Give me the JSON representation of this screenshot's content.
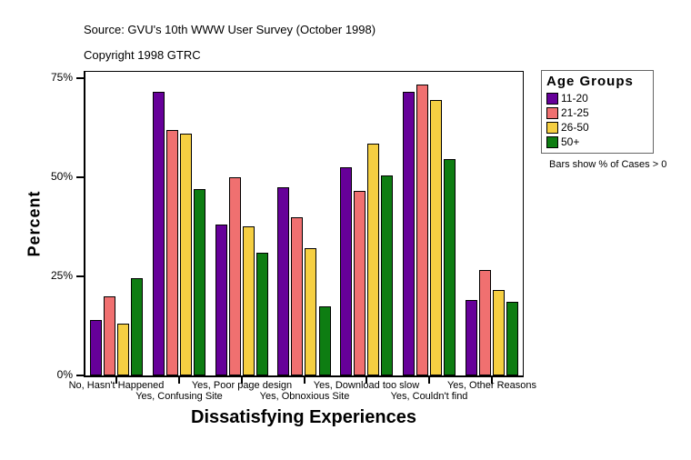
{
  "header": {
    "source_line": "Source: GVU's 10th WWW User Survey (October 1998)",
    "copyright_line": "Copyright 1998 GTRC"
  },
  "chart_data": {
    "type": "bar",
    "title": "",
    "xlabel": "Dissatisfying Experiences",
    "ylabel": "Percent",
    "ylim": [
      0,
      76.6
    ],
    "grid": false,
    "yticks": [
      {
        "label": "0%",
        "value": 0
      },
      {
        "label": "25%",
        "value": 25
      },
      {
        "label": "50%",
        "value": 50
      },
      {
        "label": "75%",
        "value": 75
      }
    ],
    "categories": [
      "No, Hasn't Happened",
      "Yes, Confusing Site",
      "Yes, Poor page design",
      "Yes, Obnoxious Site",
      "Yes, Download too slow",
      "Yes, Couldn't find",
      "Yes, Other Reasons"
    ],
    "series": [
      {
        "name": "11-20",
        "color": "#660099",
        "values": [
          14,
          71.5,
          38,
          47.5,
          52.5,
          71.5,
          19
        ]
      },
      {
        "name": "21-25",
        "color": "#F07070",
        "values": [
          20,
          62,
          50,
          40,
          46.5,
          73.5,
          26.5
        ]
      },
      {
        "name": "26-50",
        "color": "#F5CF42",
        "values": [
          13,
          61,
          37.5,
          32,
          58.5,
          69.5,
          21.5
        ]
      },
      {
        "name": "50+",
        "color": "#0E7D12",
        "values": [
          24.5,
          47,
          31,
          17.5,
          50.5,
          54.5,
          18.5
        ]
      }
    ],
    "legend": {
      "title": "Age Groups",
      "position": "right",
      "note": "Bars show % of Cases > 0"
    }
  }
}
